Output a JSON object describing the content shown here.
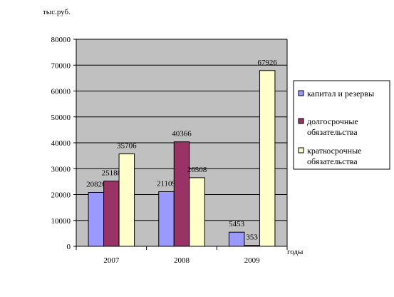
{
  "chart_data": {
    "type": "bar",
    "ylabel": "тыс.руб.",
    "xlabel": "годы",
    "categories": [
      "2007",
      "2008",
      "2009"
    ],
    "ylim": [
      0,
      80000
    ],
    "yticks": [
      0,
      10000,
      20000,
      30000,
      40000,
      50000,
      60000,
      70000,
      80000
    ],
    "grid": true,
    "legend_position": "right",
    "series": [
      {
        "name": "капитал и резервы",
        "values": [
          20826,
          21109,
          5453
        ],
        "color": "#9999ff"
      },
      {
        "name": "долгосрочные обязательства",
        "name_lines": [
          "долгосрочные",
          "обязательства"
        ],
        "values": [
          25188,
          40366,
          353
        ],
        "color": "#993366"
      },
      {
        "name": "краткосрочные обязательства",
        "name_lines": [
          "краткосрочные",
          "обязательства"
        ],
        "values": [
          35706,
          26508,
          67926
        ],
        "color": "#ffffcc"
      }
    ],
    "plot_background": "#c0c0c0"
  }
}
